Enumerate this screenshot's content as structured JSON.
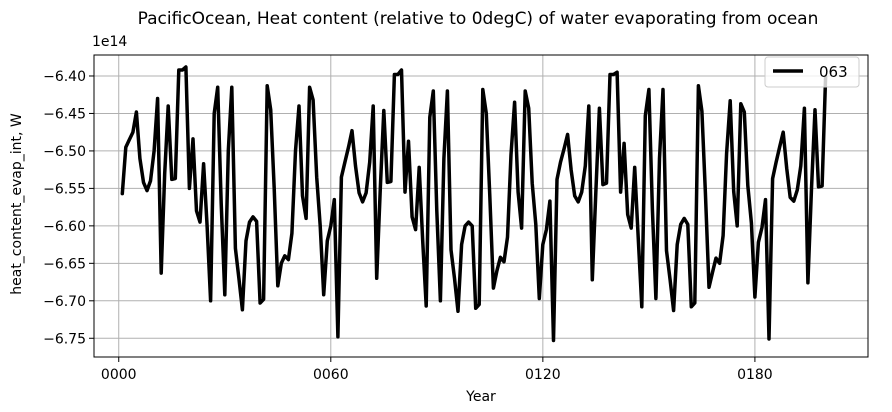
{
  "chart_data": {
    "type": "line",
    "title": "PacificOcean, Heat content (relative to 0degC) of water evaporating from ocean",
    "xlabel": "Year",
    "ylabel": "heat_content_evap_int, W",
    "y_offset_label": "1e14",
    "y_scale": 100000000000000.0,
    "xlim": [
      -7,
      212
    ],
    "ylim": [
      -6.775,
      -6.372
    ],
    "x_ticks": [
      0,
      60,
      120,
      180
    ],
    "x_tick_labels": [
      "0000",
      "0060",
      "0120",
      "0180"
    ],
    "y_ticks": [
      -6.75,
      -6.7,
      -6.65,
      -6.6,
      -6.55,
      -6.5,
      -6.45,
      -6.4
    ],
    "y_tick_labels": [
      "−6.75",
      "−6.70",
      "−6.65",
      "−6.60",
      "−6.55",
      "−6.50",
      "−6.45",
      "−6.40"
    ],
    "grid": true,
    "legend_position": "top-right",
    "series": [
      {
        "name": "063",
        "color": "#000000",
        "x": [
          1,
          2,
          3,
          4,
          5,
          6,
          7,
          8,
          9,
          10,
          11,
          12,
          13,
          14,
          15,
          16,
          17,
          18,
          19,
          20,
          21,
          22,
          23,
          24,
          25,
          26,
          27,
          28,
          29,
          30,
          31,
          32,
          33,
          34,
          35,
          36,
          37,
          38,
          39,
          40,
          41,
          42,
          43,
          44,
          45,
          46,
          47,
          48,
          49,
          50,
          51,
          52,
          53,
          54,
          55,
          56,
          57,
          58,
          59,
          60,
          61,
          62,
          63,
          64,
          65,
          66,
          67,
          68,
          69,
          70,
          71,
          72,
          73,
          74,
          75,
          76,
          77,
          78,
          79,
          80,
          81,
          82,
          83,
          84,
          85,
          86,
          87,
          88,
          89,
          90,
          91,
          92,
          93,
          94,
          95,
          96,
          97,
          98,
          99,
          100,
          101,
          102,
          103,
          104,
          105,
          106,
          107,
          108,
          109,
          110,
          111,
          112,
          113,
          114,
          115,
          116,
          117,
          118,
          119,
          120,
          121,
          122,
          123,
          124,
          125,
          126,
          127,
          128,
          129,
          130,
          131,
          132,
          133,
          134,
          135,
          136,
          137,
          138,
          139,
          140,
          141,
          142,
          143,
          144,
          145,
          146,
          147,
          148,
          149,
          150,
          151,
          152,
          153,
          154,
          155,
          156,
          157,
          158,
          159,
          160,
          161,
          162,
          163,
          164,
          165,
          166,
          167,
          168,
          169,
          170,
          171,
          172,
          173,
          174,
          175,
          176,
          177,
          178,
          179,
          180,
          181,
          182,
          183,
          184,
          185,
          186,
          187,
          188,
          189,
          190,
          191,
          192,
          193,
          194,
          195,
          196,
          197,
          198,
          199,
          200
        ],
        "y": [
          -6.557,
          -6.495,
          -6.485,
          -6.475,
          -6.448,
          -6.51,
          -6.542,
          -6.553,
          -6.54,
          -6.5,
          -6.43,
          -6.663,
          -6.53,
          -6.44,
          -6.538,
          -6.537,
          -6.392,
          -6.392,
          -6.388,
          -6.55,
          -6.484,
          -6.58,
          -6.595,
          -6.517,
          -6.6,
          -6.7,
          -6.45,
          -6.415,
          -6.57,
          -6.692,
          -6.5,
          -6.415,
          -6.63,
          -6.67,
          -6.712,
          -6.62,
          -6.595,
          -6.588,
          -6.594,
          -6.703,
          -6.698,
          -6.413,
          -6.445,
          -6.55,
          -6.68,
          -6.65,
          -6.64,
          -6.645,
          -6.61,
          -6.5,
          -6.44,
          -6.56,
          -6.59,
          -6.415,
          -6.432,
          -6.535,
          -6.6,
          -6.692,
          -6.62,
          -6.6,
          -6.565,
          -6.748,
          -6.535,
          -6.515,
          -6.495,
          -6.473,
          -6.52,
          -6.556,
          -6.568,
          -6.556,
          -6.515,
          -6.44,
          -6.67,
          -6.55,
          -6.446,
          -6.542,
          -6.541,
          -6.398,
          -6.398,
          -6.392,
          -6.555,
          -6.487,
          -6.588,
          -6.605,
          -6.522,
          -6.62,
          -6.707,
          -6.455,
          -6.42,
          -6.58,
          -6.7,
          -6.51,
          -6.42,
          -6.632,
          -6.67,
          -6.714,
          -6.625,
          -6.6,
          -6.595,
          -6.6,
          -6.71,
          -6.705,
          -6.418,
          -6.45,
          -6.56,
          -6.683,
          -6.66,
          -6.642,
          -6.648,
          -6.615,
          -6.505,
          -6.435,
          -6.555,
          -6.603,
          -6.42,
          -6.443,
          -6.543,
          -6.598,
          -6.697,
          -6.625,
          -6.605,
          -6.567,
          -6.753,
          -6.538,
          -6.515,
          -6.497,
          -6.478,
          -6.525,
          -6.56,
          -6.568,
          -6.555,
          -6.52,
          -6.44,
          -6.672,
          -6.553,
          -6.443,
          -6.545,
          -6.543,
          -6.398,
          -6.398,
          -6.395,
          -6.555,
          -6.49,
          -6.585,
          -6.603,
          -6.522,
          -6.618,
          -6.708,
          -6.453,
          -6.418,
          -6.578,
          -6.697,
          -6.51,
          -6.418,
          -6.633,
          -6.672,
          -6.713,
          -6.625,
          -6.598,
          -6.59,
          -6.598,
          -6.708,
          -6.703,
          -6.413,
          -6.447,
          -6.556,
          -6.682,
          -6.662,
          -6.643,
          -6.65,
          -6.613,
          -6.503,
          -6.433,
          -6.554,
          -6.6,
          -6.437,
          -6.448,
          -6.546,
          -6.596,
          -6.695,
          -6.622,
          -6.602,
          -6.565,
          -6.751,
          -6.537,
          -6.515,
          -6.495,
          -6.475,
          -6.523,
          -6.562,
          -6.567,
          -6.552,
          -6.52,
          -6.443,
          -6.676,
          -6.55,
          -6.445,
          -6.548,
          -6.547,
          -6.401
        ]
      }
    ]
  }
}
